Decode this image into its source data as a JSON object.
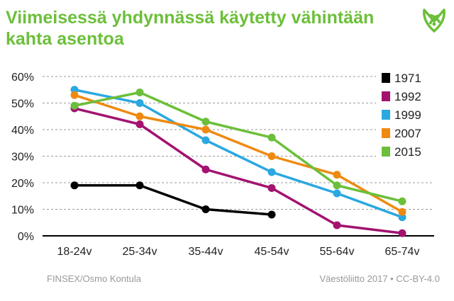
{
  "title": "Viimeisessä yhdynnässä käytetty vähintään kahta asentoa",
  "footer_left": "FINSEX/Osmo Kontula",
  "footer_right": "Väestöliitto 2017 • CC-BY-4.0",
  "logo_icon": "vaestoliitto-leaf-logo",
  "chart_data": {
    "type": "line",
    "title": "Viimeisessä yhdynnässä käytetty vähintään kahta asentoa",
    "categories": [
      "18-24v",
      "25-34v",
      "35-44v",
      "45-54v",
      "55-64v",
      "65-74v"
    ],
    "ylim": [
      0,
      60
    ],
    "yticks": [
      "0%",
      "10%",
      "20%",
      "30%",
      "40%",
      "50%",
      "60%"
    ],
    "grid": true,
    "legend": "top-right",
    "series": [
      {
        "name": "1971",
        "color": "#000000",
        "values": [
          19,
          19,
          10,
          8,
          null,
          null
        ]
      },
      {
        "name": "1992",
        "color": "#a3126f",
        "values": [
          48,
          42,
          25,
          18,
          4,
          1
        ]
      },
      {
        "name": "1999",
        "color": "#2aa8e0",
        "values": [
          55,
          50,
          36,
          24,
          16,
          7
        ]
      },
      {
        "name": "2007",
        "color": "#ee8a12",
        "values": [
          53,
          45,
          40,
          30,
          23,
          9
        ]
      },
      {
        "name": "2015",
        "color": "#6cbf3a",
        "values": [
          49,
          54,
          43,
          37,
          19,
          13
        ]
      }
    ]
  }
}
